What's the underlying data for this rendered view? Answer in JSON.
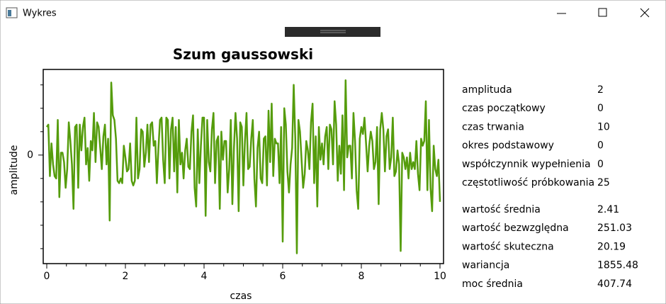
{
  "window": {
    "title": "Wykres"
  },
  "chart_data": {
    "type": "line",
    "title": "Szum gaussowski",
    "x_label": "czas",
    "y_label": "amplitude",
    "color": "#559c0c",
    "xlim": [
      -0.09,
      10.09
    ],
    "xticks": [
      0,
      2,
      4,
      6,
      8,
      10
    ],
    "x_minor_ticks": [
      0.5,
      1,
      1.5,
      2.5,
      3,
      3.5,
      4.5,
      5,
      5.5,
      6.5,
      7,
      7.5,
      8.5,
      9,
      9.5
    ],
    "ylim": [
      -2.32,
      1.83
    ],
    "yticks": [
      0
    ],
    "y_minor_ticks": [
      -2,
      -1.5,
      -1,
      -0.5,
      0.5,
      1,
      1.5
    ],
    "x": [
      0,
      0.04,
      0.08,
      0.12,
      0.16,
      0.2,
      0.24,
      0.28,
      0.32,
      0.36,
      0.4,
      0.44,
      0.48,
      0.52,
      0.56,
      0.6,
      0.64,
      0.68,
      0.72,
      0.76,
      0.8,
      0.84,
      0.88,
      0.92,
      0.96,
      1,
      1.04,
      1.08,
      1.12,
      1.16,
      1.2,
      1.24,
      1.28,
      1.32,
      1.36,
      1.4,
      1.44,
      1.48,
      1.52,
      1.56,
      1.6,
      1.64,
      1.68,
      1.72,
      1.76,
      1.8,
      1.84,
      1.88,
      1.92,
      1.96,
      2,
      2.04,
      2.08,
      2.12,
      2.16,
      2.2,
      2.24,
      2.28,
      2.32,
      2.36,
      2.4,
      2.44,
      2.48,
      2.52,
      2.56,
      2.6,
      2.64,
      2.68,
      2.72,
      2.76,
      2.8,
      2.84,
      2.88,
      2.92,
      2.96,
      3,
      3.04,
      3.08,
      3.12,
      3.16,
      3.2,
      3.24,
      3.28,
      3.32,
      3.36,
      3.4,
      3.44,
      3.48,
      3.52,
      3.56,
      3.6,
      3.64,
      3.68,
      3.72,
      3.76,
      3.8,
      3.84,
      3.88,
      3.92,
      3.96,
      4,
      4.04,
      4.08,
      4.12,
      4.16,
      4.2,
      4.24,
      4.28,
      4.32,
      4.36,
      4.4,
      4.44,
      4.48,
      4.52,
      4.56,
      4.6,
      4.64,
      4.68,
      4.72,
      4.76,
      4.8,
      4.84,
      4.88,
      4.92,
      4.96,
      5,
      5.04,
      5.08,
      5.12,
      5.16,
      5.2,
      5.24,
      5.28,
      5.32,
      5.36,
      5.4,
      5.44,
      5.48,
      5.52,
      5.56,
      5.6,
      5.64,
      5.68,
      5.72,
      5.76,
      5.8,
      5.84,
      5.88,
      5.92,
      5.96,
      6,
      6.04,
      6.08,
      6.12,
      6.16,
      6.2,
      6.24,
      6.28,
      6.32,
      6.36,
      6.4,
      6.44,
      6.48,
      6.52,
      6.56,
      6.6,
      6.64,
      6.68,
      6.72,
      6.76,
      6.8,
      6.84,
      6.88,
      6.92,
      6.96,
      7,
      7.04,
      7.08,
      7.12,
      7.16,
      7.2,
      7.24,
      7.28,
      7.32,
      7.36,
      7.4,
      7.44,
      7.48,
      7.52,
      7.56,
      7.6,
      7.64,
      7.68,
      7.72,
      7.76,
      7.8,
      7.84,
      7.88,
      7.92,
      7.96,
      8,
      8.04,
      8.08,
      8.12,
      8.16,
      8.2,
      8.24,
      8.28,
      8.32,
      8.36,
      8.4,
      8.44,
      8.48,
      8.52,
      8.56,
      8.6,
      8.64,
      8.68,
      8.72,
      8.76,
      8.8,
      8.84,
      8.88,
      8.92,
      8.96,
      9,
      9.04,
      9.08,
      9.12,
      9.16,
      9.2,
      9.24,
      9.28,
      9.32,
      9.36,
      9.4,
      9.44,
      9.48,
      9.52,
      9.56,
      9.6,
      9.64,
      9.68,
      9.72,
      9.76,
      9.8,
      9.84,
      9.88,
      9.92,
      9.96,
      10
    ],
    "values": [
      0.6,
      0.65,
      -0.45,
      0.25,
      -0.2,
      -0.45,
      -0.5,
      0.75,
      -0.9,
      0.05,
      0.05,
      -0.15,
      -0.7,
      -0.3,
      0.7,
      0.3,
      -0.2,
      -1.15,
      0.6,
      0.65,
      -0.7,
      0.65,
      0.1,
      0.6,
      0.8,
      -0.2,
      0.15,
      -0.55,
      0.3,
      0.1,
      0.9,
      -0.15,
      0.7,
      0.6,
      0.15,
      -0.3,
      0.4,
      0.65,
      -0.2,
      0.35,
      -1.4,
      1.55,
      0.85,
      0.75,
      0.35,
      -0.55,
      -0.6,
      -0.5,
      -0.6,
      0.2,
      -0.05,
      -0.35,
      -0.3,
      0.25,
      -0.55,
      -0.65,
      -0.55,
      0.8,
      -0.5,
      -0.3,
      0.55,
      0.5,
      -0.25,
      0.05,
      0.65,
      -0.15,
      0.65,
      0.7,
      0.2,
      0.3,
      -0.6,
      0.15,
      0.75,
      0.8,
      -0.1,
      -0.6,
      0.8,
      0.75,
      -0.5,
      0.55,
      0.8,
      -0.35,
      0.6,
      -0.8,
      0.75,
      -0.2,
      0.05,
      -0.5,
      0.1,
      0.35,
      -0.25,
      -0.3,
      0.5,
      0.85,
      -0.7,
      -1.1,
      0.55,
      -0.6,
      0.2,
      0.8,
      0.8,
      -1.3,
      0.75,
      -0.15,
      -0.35,
      0.55,
      0.9,
      -0.6,
      0.3,
      0.4,
      -1.15,
      0.5,
      -0.1,
      0.3,
      0.3,
      -0.8,
      -0.3,
      0.75,
      -1.05,
      0.15,
      0.9,
      0.35,
      -1.2,
      0.7,
      0.6,
      -0.65,
      0.3,
      0.9,
      -0.3,
      -0.25,
      0.35,
      0.75,
      -0.5,
      -1.1,
      0.15,
      0.5,
      -0.5,
      -0.6,
      0.35,
      0.4,
      -0.65,
      0.95,
      -0.15,
      1.1,
      -0.45,
      0.35,
      0.25,
      0.25,
      -0.6,
      0.6,
      -1.85,
      1.0,
      0.65,
      -0.35,
      -0.8,
      -0.2,
      0.15,
      1.5,
      0.35,
      -2.1,
      0.75,
      0.5,
      -0.1,
      -0.7,
      -0.4,
      0.3,
      0.1,
      -0.3,
      0.7,
      1.1,
      -0.6,
      0.4,
      -1.1,
      0.6,
      -0.1,
      0.25,
      -0.2,
      0.4,
      0.6,
      -0.3,
      0.65,
      0.55,
      -0.2,
      1.15,
      0.65,
      -0.55,
      0.2,
      -0.4,
      0.85,
      -0.75,
      1.6,
      -0.05,
      0.2,
      0.2,
      -0.5,
      0.9,
      0.3,
      -0.75,
      -1.15,
      0.35,
      0.6,
      0.45,
      0.8,
      0.25,
      -0.35,
      0.2,
      0.5,
      0.3,
      -0.3,
      -0.15,
      0.6,
      -1.05,
      0.55,
      0.9,
      0.55,
      -0.35,
      0.4,
      0.55,
      -0.3,
      -0.05,
      0.8,
      -0.45,
      -0.35,
      0.1,
      -0.2,
      -2.05,
      0.05,
      -0.05,
      -0.3,
      -0.05,
      -0.5,
      0.05,
      -0.3,
      -0.15,
      -0.3,
      0.3,
      -0.4,
      -0.75,
      0.35,
      0.2,
      0.3,
      1.15,
      -0.75,
      0.75,
      -0.7,
      -1.2,
      0.2,
      -0.3,
      -0.45,
      -0.1,
      -1.0
    ]
  },
  "params": [
    {
      "label": "amplituda",
      "value": 2
    },
    {
      "label": "czas początkowy",
      "value": 0
    },
    {
      "label": "czas trwania",
      "value": 10
    },
    {
      "label": "okres podstawowy",
      "value": 0
    },
    {
      "label": "współczynnik wypełnienia",
      "value": 0
    },
    {
      "label": "częstotliwość próbkowania",
      "value": 25
    }
  ],
  "stats": [
    {
      "label": "wartość średnia",
      "value": 2.41
    },
    {
      "label": "wartość bezwzględna",
      "value": 251.03
    },
    {
      "label": "wartość skuteczna",
      "value": 20.19
    },
    {
      "label": "wariancja",
      "value": 1855.48
    },
    {
      "label": "moc średnia",
      "value": 407.74
    }
  ]
}
